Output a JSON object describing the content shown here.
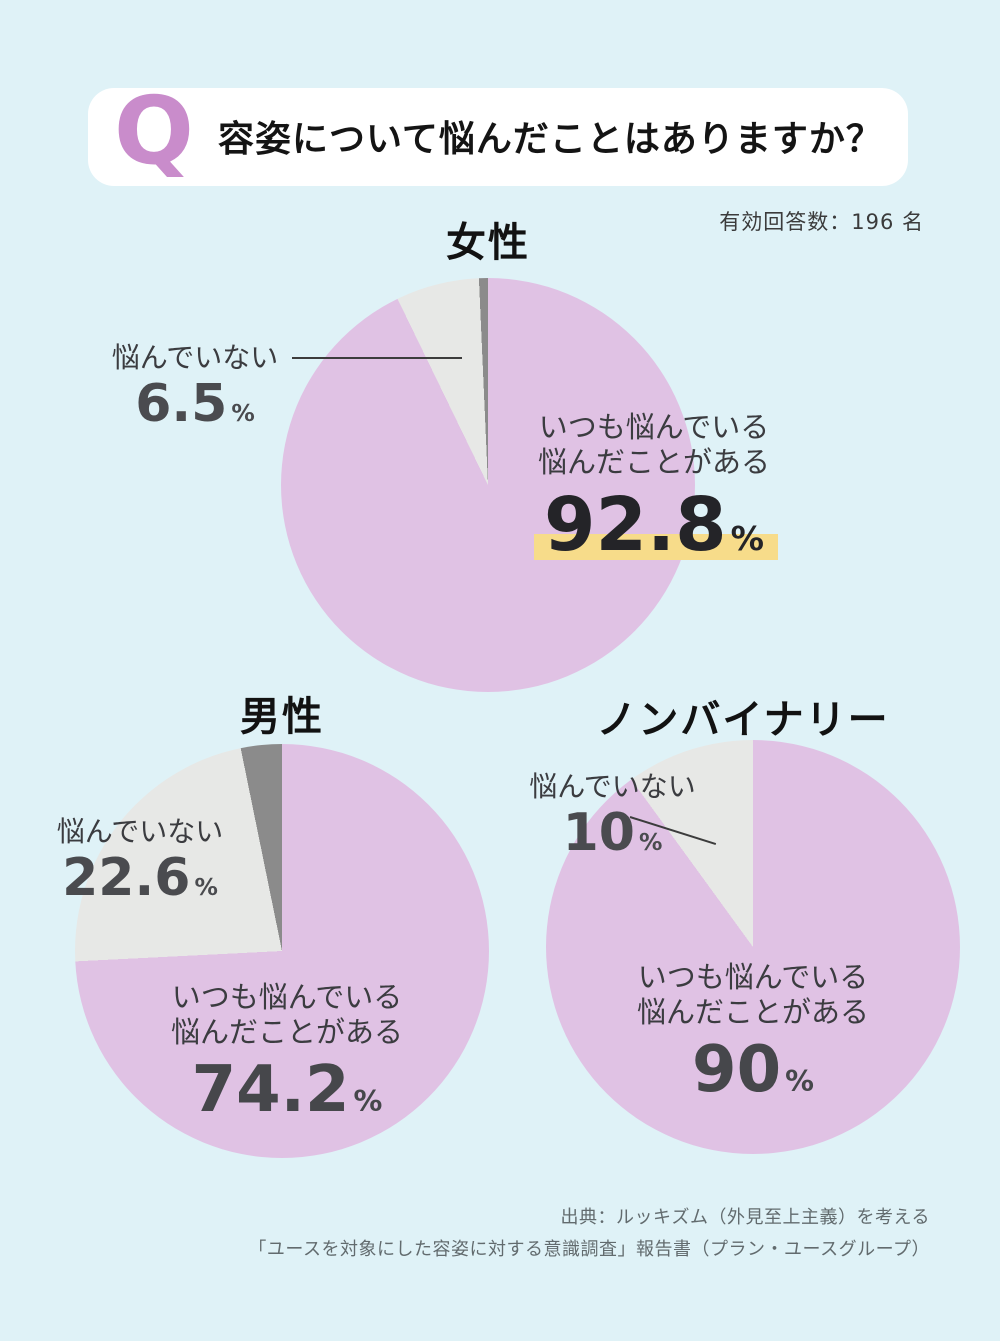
{
  "palette": {
    "bg": "#dff2f7",
    "card": "#ffffff",
    "accent": "#c98ccb",
    "worried": "#e0c2e4",
    "not_worried": "#e7e8e6",
    "other": "#8b8b8b",
    "highlight": "#f7dc8a"
  },
  "header": {
    "q_mark": "Q",
    "question": "容姿について悩んだことはありますか？",
    "respondents": "有効回答数：196 名"
  },
  "chart_data": [
    {
      "type": "pie",
      "title": "女性",
      "slices": [
        {
          "label": "いつも悩んでいる・悩んだことがある",
          "value": 92.8,
          "color": "worried"
        },
        {
          "label": "悩んでいない",
          "value": 6.5,
          "color": "not_worried"
        },
        {
          "label": "",
          "value": 0.7,
          "color": "other"
        }
      ],
      "main_line1": "いつも悩んでいる",
      "main_line2": "悩んだことがある",
      "main_value": "92.8",
      "main_unit": "%",
      "side_label": "悩んでいない",
      "side_value": "6.5",
      "side_unit": "%",
      "highlighted": true
    },
    {
      "type": "pie",
      "title": "男性",
      "slices": [
        {
          "label": "いつも悩んでいる・悩んだことがある",
          "value": 74.2,
          "color": "worried"
        },
        {
          "label": "悩んでいない",
          "value": 22.6,
          "color": "not_worried"
        },
        {
          "label": "",
          "value": 3.2,
          "color": "other"
        }
      ],
      "main_line1": "いつも悩んでいる",
      "main_line2": "悩んだことがある",
      "main_value": "74.2",
      "main_unit": "%",
      "side_label": "悩んでいない",
      "side_value": "22.6",
      "side_unit": "%",
      "highlighted": false
    },
    {
      "type": "pie",
      "title": "ノンバイナリー",
      "slices": [
        {
          "label": "いつも悩んでいる・悩んだことがある",
          "value": 90,
          "color": "worried"
        },
        {
          "label": "悩んでいない",
          "value": 10,
          "color": "not_worried"
        }
      ],
      "main_line1": "いつも悩んでいる",
      "main_line2": "悩んだことがある",
      "main_value": "90",
      "main_unit": "%",
      "side_label": "悩んでいない",
      "side_value": "10",
      "side_unit": "%",
      "highlighted": false
    }
  ],
  "source": {
    "line1": "出典：ルッキズム（外見至上主義）を考える",
    "line2": "「ユースを対象にした容姿に対する意識調査」報告書（プラン・ユースグループ）"
  }
}
